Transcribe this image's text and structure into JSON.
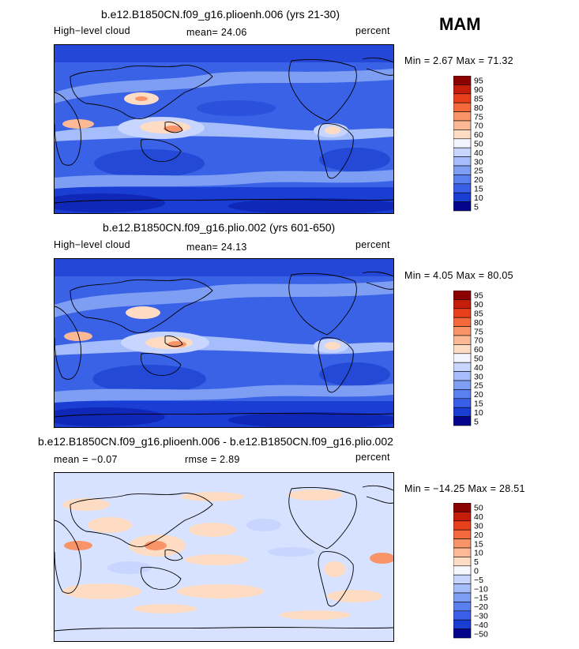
{
  "season": "MAM",
  "panels": [
    {
      "title": "b.e12.B1850CN.f09_g16.plioenh.006 (yrs 21-30)",
      "left_label": "High−level cloud",
      "center_label": "mean=  24.06",
      "right_label": "percent",
      "minmax": "Min =    2.67 Max =  71.32",
      "colorbar_labels": [
        "95",
        "90",
        "85",
        "80",
        "75",
        "70",
        "60",
        "50",
        "40",
        "30",
        "25",
        "20",
        "15",
        "10",
        "5"
      ]
    },
    {
      "title": "b.e12.B1850CN.f09_g16.plio.002 (yrs 601-650)",
      "left_label": "High−level cloud",
      "center_label": "mean=  24.13",
      "right_label": "percent",
      "minmax": "Min =    4.05 Max =  80.05",
      "colorbar_labels": [
        "95",
        "90",
        "85",
        "80",
        "75",
        "70",
        "60",
        "50",
        "40",
        "30",
        "25",
        "20",
        "15",
        "10",
        "5"
      ]
    },
    {
      "title": "b.e12.B1850CN.f09_g16.plioenh.006 - b.e12.B1850CN.f09_g16.plio.002",
      "left_label": "mean =  −0.07",
      "center_label": "rmse =   2.89",
      "right_label": "percent",
      "minmax": "Min = −14.25 Max =  28.51",
      "colorbar_labels": [
        "50",
        "40",
        "30",
        "20",
        "15",
        "10",
        "5",
        "0",
        "−5",
        "−10",
        "−15",
        "−20",
        "−30",
        "−40",
        "−50"
      ]
    }
  ],
  "colors": {
    "abs_scale": [
      "#8b0000",
      "#c41d0a",
      "#e8401a",
      "#f46a3c",
      "#f99468",
      "#fdb896",
      "#fedcc4",
      "#f4f4ff",
      "#c8d6ff",
      "#a5bdfb",
      "#7e9ef4",
      "#5a7fee",
      "#3a5fe6",
      "#1a3dd4",
      "#04048c"
    ],
    "diff_scale": [
      "#8b0000",
      "#c41d0a",
      "#e8401a",
      "#f46a3c",
      "#f99468",
      "#fdb896",
      "#fedcc4",
      "#f7f7ff",
      "#c8d6ff",
      "#a5bdfb",
      "#7e9ef4",
      "#5a7fee",
      "#3a5fe6",
      "#1a3dd4",
      "#04048c"
    ],
    "map_base_abs": "#3a62e6",
    "map_base_diff": "#d6e2ff"
  },
  "chart_data": [
    {
      "type": "heatmap",
      "title": "b.e12.B1850CN.f09_g16.plioenh.006 (yrs 21-30)",
      "variable": "High−level cloud",
      "units": "percent",
      "mean": 24.06,
      "min": 2.67,
      "max": 71.32,
      "levels": [
        5,
        10,
        15,
        20,
        25,
        30,
        40,
        50,
        60,
        70,
        75,
        80,
        85,
        90,
        95
      ]
    },
    {
      "type": "heatmap",
      "title": "b.e12.B1850CN.f09_g16.plio.002 (yrs 601-650)",
      "variable": "High−level cloud",
      "units": "percent",
      "mean": 24.13,
      "min": 4.05,
      "max": 80.05,
      "levels": [
        5,
        10,
        15,
        20,
        25,
        30,
        40,
        50,
        60,
        70,
        75,
        80,
        85,
        90,
        95
      ]
    },
    {
      "type": "heatmap",
      "title": "b.e12.B1850CN.f09_g16.plioenh.006 - b.e12.B1850CN.f09_g16.plio.002",
      "units": "percent",
      "mean": -0.07,
      "rmse": 2.89,
      "min": -14.25,
      "max": 28.51,
      "levels": [
        -50,
        -40,
        -30,
        -20,
        -15,
        -10,
        -5,
        0,
        5,
        10,
        15,
        20,
        30,
        40,
        50
      ]
    }
  ]
}
